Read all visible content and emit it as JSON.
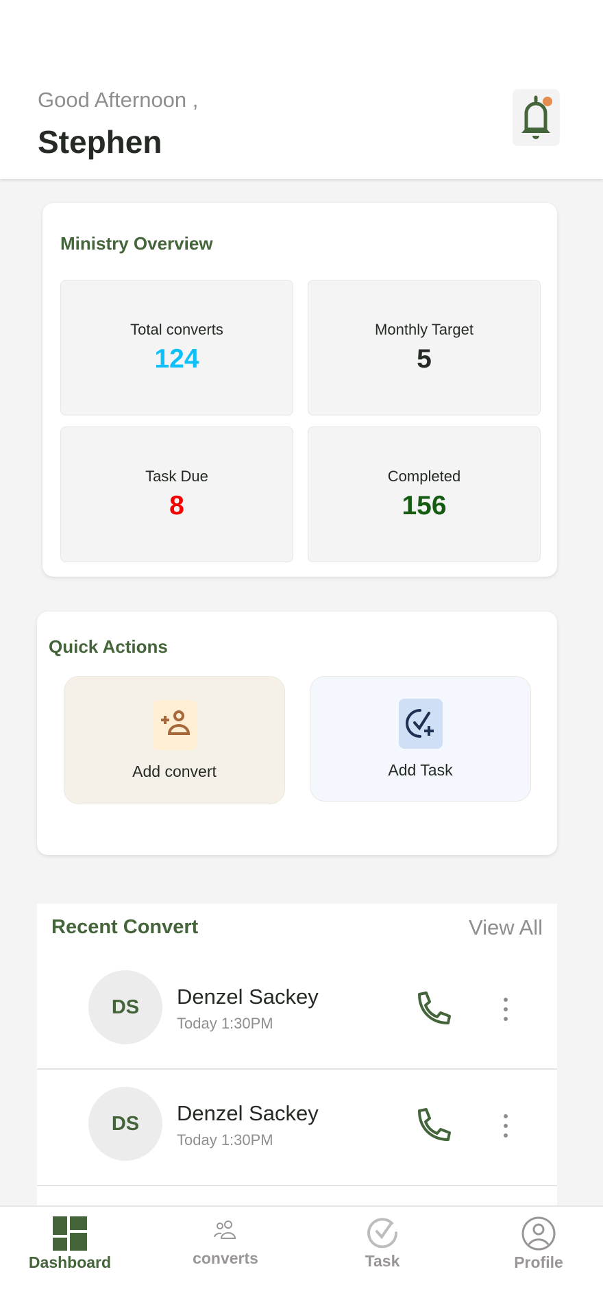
{
  "header": {
    "greeting": "Good Afternoon ,",
    "user_name": "Stephen",
    "notification_dot_color": "#e58c4f"
  },
  "overview": {
    "title": "Ministry Overview",
    "stats": [
      {
        "label": "Total converts",
        "value": "124",
        "color": "#0ec0f9"
      },
      {
        "label": "Monthly Target",
        "value": "5",
        "color": "#252b24"
      },
      {
        "label": "Task Due",
        "value": "8",
        "color": "#f40000"
      },
      {
        "label": "Completed",
        "value": "156",
        "color": "#165b12"
      }
    ]
  },
  "quick_actions": {
    "title": "Quick Actions",
    "items": [
      {
        "label": "Add convert",
        "icon": "add-person-icon"
      },
      {
        "label": "Add Task",
        "icon": "add-task-icon"
      }
    ]
  },
  "recent": {
    "title": "Recent Convert",
    "view_all": "View All",
    "items": [
      {
        "initials": "DS",
        "name": "Denzel Sackey",
        "time": "Today 1:30PM"
      },
      {
        "initials": "DS",
        "name": "Denzel Sackey",
        "time": "Today 1:30PM"
      }
    ]
  },
  "nav": {
    "active": "Dashboard",
    "items": [
      {
        "label": "Dashboard",
        "icon": "dashboard-icon"
      },
      {
        "label": "converts",
        "icon": "people-icon"
      },
      {
        "label": "Task",
        "icon": "check-circle-icon"
      },
      {
        "label": "Profile",
        "icon": "profile-icon"
      }
    ]
  },
  "colors": {
    "brand_green": "#44643a"
  }
}
